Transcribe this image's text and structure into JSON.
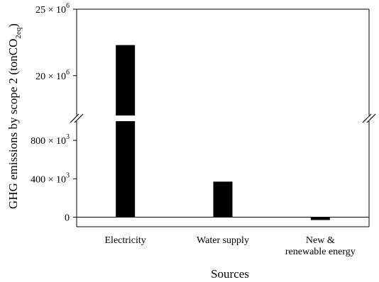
{
  "chart_data": {
    "type": "bar",
    "categories": [
      "Electricity",
      "Water supply",
      "New & renewable energy"
    ],
    "category_lines": [
      [
        "Electricity"
      ],
      [
        "Water supply"
      ],
      [
        "New &",
        "renewable energy"
      ]
    ],
    "values": [
      22300000,
      370000,
      -30000
    ],
    "bar_color": "#000000",
    "xlabel": "Sources",
    "ylabel_parts": {
      "main": "GHG emissions by scope 2 (tonCO",
      "sub": "2eq",
      "end": ")"
    },
    "y_axis_break": true,
    "upper_segment": {
      "ylim": [
        17000000,
        25000000
      ],
      "ticks": [
        {
          "value": 20000000,
          "base": "20 × 10",
          "exp": "6"
        },
        {
          "value": 25000000,
          "base": "25 × 10",
          "exp": "6"
        }
      ]
    },
    "lower_segment": {
      "ylim": [
        -100000,
        1000000
      ],
      "ticks": [
        {
          "value": 0,
          "base": "0",
          "exp": ""
        },
        {
          "value": 400000,
          "base": "400 × 10",
          "exp": "3"
        },
        {
          "value": 800000,
          "base": "800 × 10",
          "exp": "3"
        }
      ]
    },
    "zero_line": true
  }
}
